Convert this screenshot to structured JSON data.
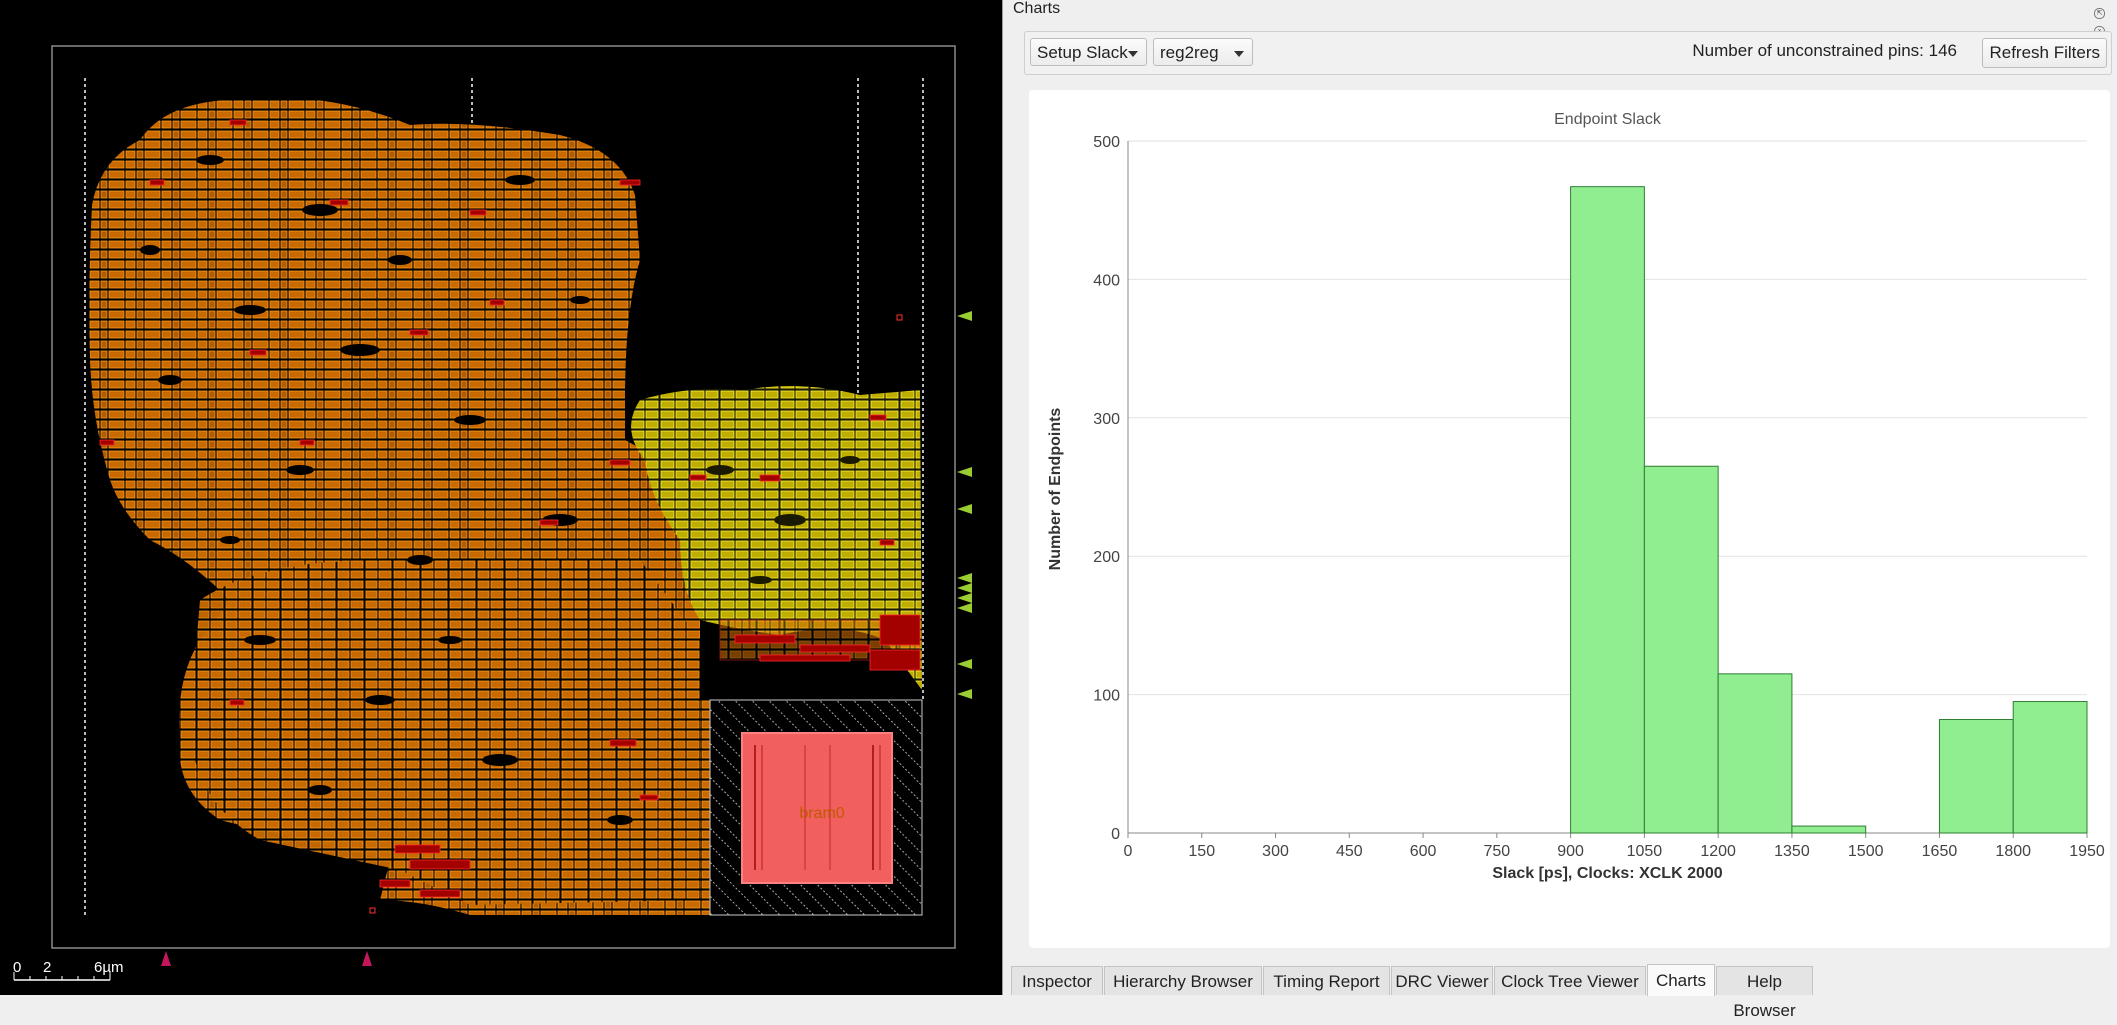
{
  "layout_view": {
    "macro_label": "bram0",
    "scale_bar": {
      "labels": [
        "0",
        "2",
        "6µm"
      ]
    }
  },
  "charts_panel": {
    "title": "Charts",
    "path_type_select": "Setup Slack",
    "path_group_select": "reg2reg",
    "unconstrained_pins_text": "Number of unconstrained pins: 146",
    "refresh_button": "Refresh Filters"
  },
  "chart_data": {
    "type": "bar",
    "title": "Endpoint Slack",
    "xlabel": "Slack [ps], Clocks: XCLK 2000",
    "ylabel": "Number of Endpoints",
    "x_ticks": [
      0,
      150,
      300,
      450,
      600,
      750,
      900,
      1050,
      1200,
      1350,
      1500,
      1650,
      1800,
      1950
    ],
    "xlim": [
      0,
      1950
    ],
    "ylim": [
      0,
      500
    ],
    "y_ticks": [
      0,
      100,
      200,
      300,
      400,
      500
    ],
    "bins": [
      {
        "x0": 900,
        "x1": 1050,
        "count": 467
      },
      {
        "x0": 1050,
        "x1": 1200,
        "count": 265
      },
      {
        "x0": 1200,
        "x1": 1350,
        "count": 115
      },
      {
        "x0": 1350,
        "x1": 1500,
        "count": 5
      },
      {
        "x0": 1650,
        "x1": 1800,
        "count": 82
      },
      {
        "x0": 1800,
        "x1": 1950,
        "count": 95
      }
    ],
    "bar_color": "#90ee90",
    "bar_edge": "#2e7d32",
    "grid": true
  },
  "bottom_tabs": [
    "Inspector",
    "Hierarchy Browser",
    "Timing Report",
    "DRC Viewer",
    "Clock Tree Viewer",
    "Charts",
    "Help Browser"
  ],
  "active_tab": "Charts",
  "colors": {
    "orange_cells": "#ff8c00",
    "yellow_cells": "#e8d800",
    "red_cells": "#d40000",
    "macro_fill": "#f25f5f",
    "pin_marker": "#9acd32"
  }
}
